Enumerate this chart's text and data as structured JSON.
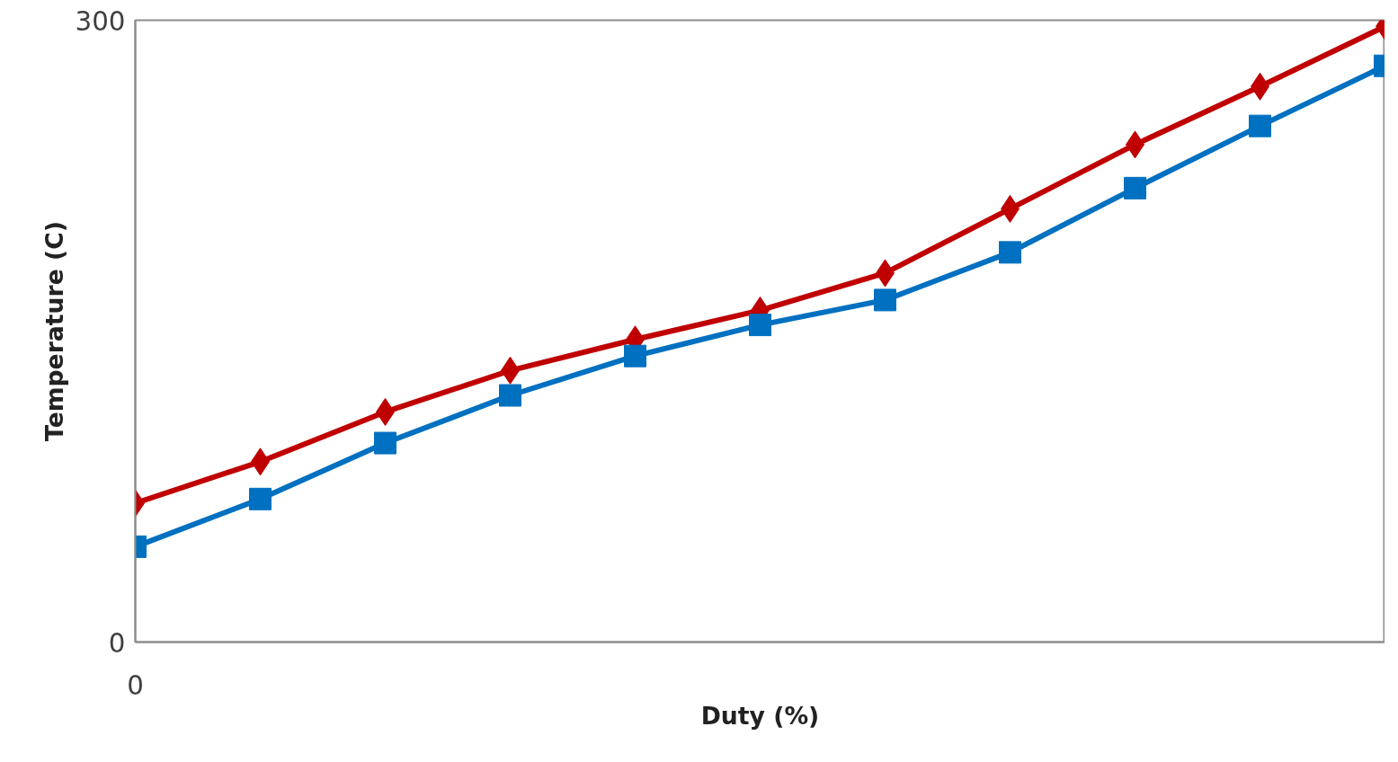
{
  "chart_data": {
    "type": "line",
    "xlabel": "Duty (%)",
    "ylabel": "Temperature (C)",
    "categories": [
      "0",
      null,
      null,
      null,
      null,
      null,
      null,
      null,
      null,
      null,
      null
    ],
    "ylim": [
      0,
      300
    ],
    "yticks": [
      0,
      300
    ],
    "line_style": "solid",
    "series": [
      {
        "color": "#c00000",
        "marker": "diamond",
        "values": [
          67,
          87,
          111,
          131,
          146,
          160,
          178,
          209,
          240,
          268,
          297
        ]
      },
      {
        "color": "#0070c0",
        "marker": "square",
        "values": [
          46,
          69,
          96,
          119,
          138,
          153,
          165,
          188,
          219,
          249,
          278
        ]
      }
    ]
  }
}
